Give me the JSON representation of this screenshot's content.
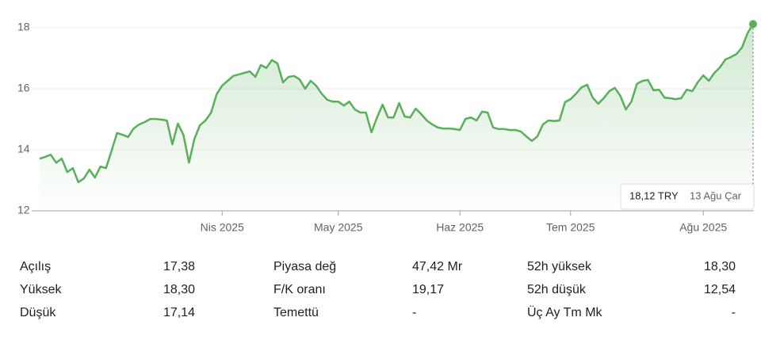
{
  "chart_data": {
    "type": "line",
    "color": "#5aaf5a",
    "grid": true,
    "ylim": [
      12,
      18.5
    ],
    "yticks": [
      12,
      14,
      16,
      18
    ],
    "categories": [
      null,
      null,
      null,
      null,
      null,
      null,
      null,
      null,
      null,
      null,
      null,
      null,
      null,
      null,
      null,
      null,
      null,
      null,
      null,
      null,
      null,
      null,
      null,
      null,
      null,
      null,
      null,
      null,
      null,
      null,
      null,
      null,
      null,
      "Nis 2025",
      null,
      null,
      null,
      null,
      null,
      null,
      null,
      null,
      null,
      null,
      null,
      null,
      null,
      null,
      null,
      null,
      null,
      null,
      null,
      null,
      "May 2025",
      null,
      null,
      null,
      null,
      null,
      null,
      null,
      null,
      null,
      null,
      null,
      null,
      null,
      null,
      null,
      null,
      null,
      null,
      null,
      null,
      null,
      "Haz 2025",
      null,
      null,
      null,
      null,
      null,
      null,
      null,
      null,
      null,
      null,
      null,
      null,
      null,
      null,
      null,
      null,
      null,
      null,
      null,
      "Tem 2025",
      null,
      null,
      null,
      null,
      null,
      null,
      null,
      null,
      null,
      null,
      null,
      null,
      null,
      null,
      null,
      null,
      null,
      null,
      null,
      null,
      null,
      null,
      null,
      "Ağu 2025",
      null,
      null,
      null,
      null,
      null,
      null,
      null,
      null,
      null
    ],
    "values": [
      13.71,
      13.77,
      13.84,
      13.58,
      13.71,
      13.27,
      13.4,
      12.94,
      13.06,
      13.35,
      13.09,
      13.45,
      13.4,
      13.97,
      14.55,
      14.49,
      14.42,
      14.7,
      14.83,
      14.91,
      15.01,
      15.01,
      14.99,
      14.96,
      14.18,
      14.86,
      14.49,
      13.58,
      14.36,
      14.81,
      14.96,
      15.22,
      15.82,
      16.1,
      16.26,
      16.42,
      16.47,
      16.52,
      16.57,
      16.39,
      16.78,
      16.68,
      16.94,
      16.83,
      16.21,
      16.39,
      16.42,
      16.31,
      16.0,
      16.26,
      16.1,
      15.84,
      15.64,
      15.58,
      15.58,
      15.45,
      15.58,
      15.32,
      15.22,
      15.22,
      14.57,
      15.06,
      15.48,
      15.06,
      15.06,
      15.53,
      15.09,
      15.06,
      15.35,
      15.17,
      14.96,
      14.83,
      14.73,
      14.7,
      14.7,
      14.68,
      14.65,
      15.01,
      15.06,
      14.96,
      15.25,
      15.22,
      14.73,
      14.68,
      14.68,
      14.65,
      14.65,
      14.6,
      14.44,
      14.29,
      14.44,
      14.83,
      14.96,
      14.94,
      14.96,
      15.56,
      15.66,
      15.84,
      16.05,
      16.13,
      15.71,
      15.51,
      15.69,
      15.92,
      16.03,
      15.77,
      15.32,
      15.58,
      16.16,
      16.26,
      16.29,
      15.95,
      15.97,
      15.71,
      15.69,
      15.66,
      15.69,
      15.97,
      15.92,
      16.21,
      16.44,
      16.26,
      16.52,
      16.7,
      16.96,
      17.04,
      17.14,
      17.35,
      17.82,
      18.12
    ]
  },
  "tooltip": {
    "price": "18,12 TRY",
    "date": "13 Ağu Çar"
  },
  "stats": {
    "rows": [
      [
        "Açılış",
        "17,38",
        "Piyasa değ",
        "47,42 Mr",
        "52h yüksek",
        "18,30"
      ],
      [
        "Yüksek",
        "18,30",
        "F/K oranı",
        "19,17",
        "52h düşük",
        "12,54"
      ],
      [
        "Düşük",
        "17,14",
        "Temettü",
        "-",
        "Üç Ay Tm Mk",
        "-"
      ]
    ]
  }
}
